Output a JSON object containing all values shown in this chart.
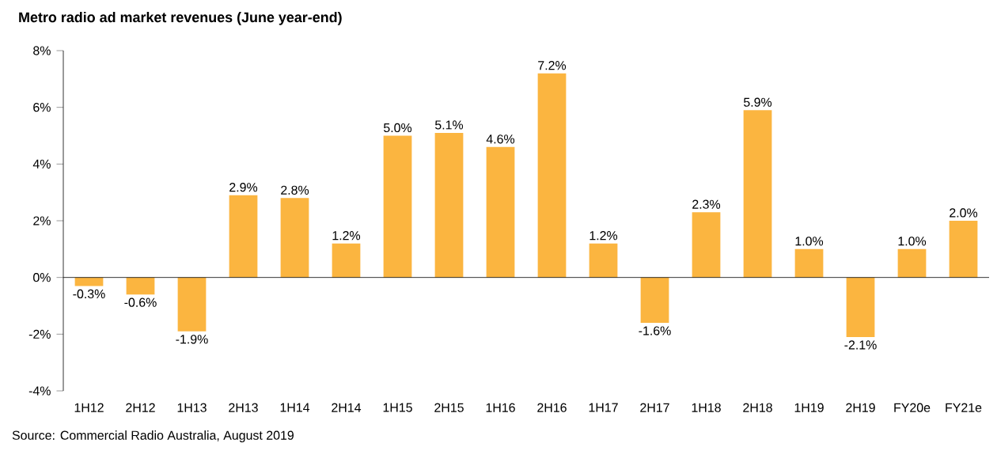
{
  "chart_data": {
    "type": "bar",
    "title": "Metro radio ad market revenues (June year-end)",
    "categories": [
      "1H12",
      "2H12",
      "1H13",
      "2H13",
      "1H14",
      "2H14",
      "1H15",
      "2H15",
      "1H16",
      "2H16",
      "1H17",
      "2H17",
      "1H18",
      "2H18",
      "1H19",
      "2H19",
      "FY20e",
      "FY21e"
    ],
    "values": [
      -0.3,
      -0.6,
      -1.9,
      2.9,
      2.8,
      1.2,
      5.0,
      5.1,
      4.6,
      7.2,
      1.2,
      -1.6,
      2.3,
      5.9,
      1.0,
      -2.1,
      1.0,
      2.0
    ],
    "value_labels": [
      "-0.3%",
      "-0.6%",
      "-1.9%",
      "2.9%",
      "2.8%",
      "1.2%",
      "5.0%",
      "5.1%",
      "4.6%",
      "7.2%",
      "1.2%",
      "-1.6%",
      "2.3%",
      "5.9%",
      "1.0%",
      "-2.1%",
      "1.0%",
      "2.0%"
    ],
    "color": "#fbb540",
    "ylim": [
      -4,
      8
    ],
    "yticks": [
      {
        "value": -4,
        "label": "-4%"
      },
      {
        "value": -2,
        "label": "-2%"
      },
      {
        "value": 0,
        "label": "0%"
      },
      {
        "value": 2,
        "label": "2%"
      },
      {
        "value": 4,
        "label": "4%"
      },
      {
        "value": 6,
        "label": "6%"
      },
      {
        "value": 8,
        "label": "8%"
      }
    ],
    "annotations": [
      "Source: Commercial Radio Australia, August 2019"
    ]
  }
}
